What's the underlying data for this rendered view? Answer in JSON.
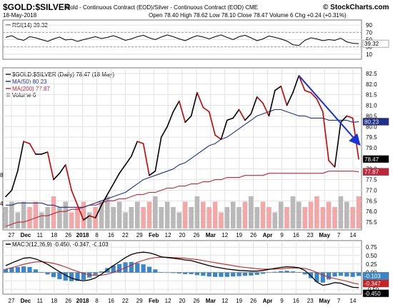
{
  "header": {
    "symbol": "$GOLD:$SILVER",
    "description": "Gold - Continuous Contract (EOD)/Silver - Continuous Contract (EOD) CME",
    "date": "18-May-2018",
    "ohlc": "Open 78.40  High 78.62  Low 78.10  Close 78.47  Volume 6  Chg +0.24 (+0.31%)",
    "brand": "© StockCharts.com"
  },
  "colors": {
    "price": "#000000",
    "down": "#cc0000",
    "ma50": "#1f2f8a",
    "ma200": "#c0253a",
    "trend": "#1b32d6",
    "volume": "#b9b9b9",
    "volume_up": "#f0a8a8",
    "macd": "#000000",
    "signal": "#cc2222",
    "hist": "#3a86c8",
    "rsi": "#000000"
  },
  "chart_data": [
    {
      "type": "line",
      "panel": "RSI",
      "legend": "RSI(14) 39.32",
      "ylim": [
        0,
        100
      ],
      "y_ticks": [
        10,
        30,
        50,
        70,
        90
      ],
      "guide_lines": [
        30,
        70
      ],
      "last_label": "39.32",
      "values": [
        56,
        61,
        52,
        48,
        58,
        55,
        50,
        45,
        52,
        57,
        49,
        51,
        45,
        50,
        54,
        58,
        53,
        56,
        61,
        55,
        48,
        52,
        58,
        62,
        55,
        50,
        57,
        63,
        58,
        52,
        47,
        55,
        61,
        57,
        52,
        58,
        63,
        56,
        50,
        58,
        62,
        55,
        47,
        52,
        60,
        56,
        52,
        46,
        36,
        34,
        48,
        55,
        52,
        47,
        50,
        48,
        54,
        44,
        40,
        39
      ]
    },
    {
      "type": "line",
      "panel": "Price",
      "legend": [
        "$GOLD:$SILVER (Daily) 78.47 (18 May)",
        "MA(50) 80.23",
        "MA(200) 77.87",
        "Volume 6"
      ],
      "ylim": [
        75.2,
        82.7
      ],
      "y_ticks": [
        75.5,
        76.0,
        76.5,
        77.0,
        77.5,
        78.0,
        78.5,
        79.0,
        79.5,
        80.0,
        80.5,
        81.0,
        81.5,
        82.0,
        82.5
      ],
      "right_labels": [
        "78.47",
        "80.23",
        "77.87"
      ],
      "x_labels": [
        "27",
        "Dec",
        "11",
        "18",
        "26",
        "2018",
        "8",
        "16",
        "22",
        "29",
        "Feb",
        "12",
        "20",
        "26",
        "Mar",
        "12",
        "19",
        "26",
        "Apr",
        "9",
        "16",
        "23",
        "May",
        "7",
        "14"
      ],
      "left_edge_labels": [
        "8",
        "4"
      ],
      "series": [
        {
          "name": "$GOLD:$SILVER",
          "values": [
            76.7,
            77.0,
            77.9,
            79.3,
            79.2,
            78.7,
            78.7,
            78.8,
            77.5,
            77.8,
            78.2,
            77.0,
            76.3,
            75.6,
            75.8,
            75.7,
            76.3,
            76.8,
            77.3,
            77.8,
            78.2,
            78.6,
            79.3,
            79.2,
            77.7,
            77.9,
            79.5,
            80.0,
            80.7,
            81.2,
            80.2,
            80.5,
            81.6,
            80.9,
            80.7,
            79.6,
            79.4,
            80.3,
            80.4,
            80.8,
            80.3,
            80.6,
            81.4,
            81.1,
            80.5,
            81.7,
            81.9,
            81.0,
            81.6,
            82.4,
            81.7,
            81.6,
            81.3,
            80.7,
            78.4,
            78.1,
            80.2,
            80.5,
            80.4,
            78.47
          ]
        },
        {
          "name": "MA(50)",
          "values": [
            76.3,
            76.3,
            76.4,
            76.4,
            76.4,
            76.4,
            76.4,
            76.3,
            76.3,
            76.2,
            76.2,
            76.2,
            76.2,
            76.2,
            76.3,
            76.4,
            76.5,
            76.6,
            76.7,
            76.8,
            76.9,
            77.1,
            77.3,
            77.5,
            77.6,
            77.7,
            77.8,
            77.9,
            78.0,
            78.2,
            78.3,
            78.5,
            78.7,
            78.9,
            79.1,
            79.2,
            79.4,
            79.5,
            79.7,
            79.9,
            80.1,
            80.3,
            80.5,
            80.6,
            80.7,
            80.8,
            80.8,
            80.7,
            80.6,
            80.5,
            80.5,
            80.4,
            80.4,
            80.4,
            80.3,
            80.3,
            80.3,
            80.3,
            80.2,
            80.23
          ]
        },
        {
          "name": "MA(200)",
          "values": [
            75.3,
            75.4,
            75.5,
            75.5,
            75.6,
            75.7,
            75.8,
            75.8,
            75.9,
            76.0,
            76.0,
            76.1,
            76.1,
            76.2,
            76.3,
            76.3,
            76.4,
            76.5,
            76.5,
            76.6,
            76.6,
            76.7,
            76.8,
            76.8,
            76.9,
            76.9,
            77.0,
            77.1,
            77.1,
            77.2,
            77.2,
            77.3,
            77.3,
            77.4,
            77.4,
            77.5,
            77.5,
            77.6,
            77.6,
            77.6,
            77.7,
            77.7,
            77.7,
            77.7,
            77.8,
            77.8,
            77.8,
            77.8,
            77.8,
            77.8,
            77.8,
            77.8,
            77.8,
            77.8,
            77.9,
            77.9,
            77.9,
            77.9,
            77.9,
            77.87
          ]
        },
        {
          "name": "Volume",
          "values": [
            4,
            5,
            3,
            5,
            4,
            5,
            3,
            4,
            6,
            4,
            5,
            3,
            4,
            5,
            3,
            4,
            5,
            6,
            4,
            5,
            3,
            4,
            5,
            4,
            5,
            6,
            4,
            5,
            4,
            3,
            5,
            4,
            6,
            5,
            4,
            5,
            3,
            4,
            5,
            4,
            5,
            6,
            4,
            5,
            4,
            3,
            5,
            4,
            6,
            5,
            4,
            5,
            6,
            4,
            5,
            4,
            6,
            5,
            4,
            6
          ]
        }
      ],
      "trendline": {
        "from": [
          49,
          82.4
        ],
        "to": [
          59,
          79.2
        ]
      }
    },
    {
      "type": "line",
      "panel": "MACD",
      "legend": "MACD(12,26,9) -0.450, -0.347, -0.103",
      "ylim": [
        -0.6,
        0.9
      ],
      "y_ticks": [
        -0.5,
        -0.25,
        0.0,
        0.25,
        0.5,
        0.75
      ],
      "right_labels": [
        "-0.103",
        "-0.347",
        "-0.450"
      ],
      "series": [
        {
          "name": "MACD",
          "values": [
            0.2,
            0.28,
            0.35,
            0.42,
            0.44,
            0.4,
            0.33,
            0.24,
            0.13,
            0.02,
            -0.08,
            -0.17,
            -0.22,
            -0.25,
            -0.22,
            -0.16,
            -0.05,
            0.08,
            0.2,
            0.32,
            0.44,
            0.53,
            0.58,
            0.6,
            0.58,
            0.53,
            0.46,
            0.44,
            0.42,
            0.4,
            0.37,
            0.35,
            0.3,
            0.25,
            0.2,
            0.16,
            0.13,
            0.1,
            0.08,
            0.06,
            0.05,
            0.04,
            0.04,
            0.06,
            0.09,
            0.12,
            0.15,
            0.17,
            0.16,
            0.14,
            0.06,
            -0.1,
            -0.28,
            -0.38,
            -0.35,
            -0.3,
            -0.32,
            -0.38,
            -0.44,
            -0.45
          ]
        },
        {
          "name": "Signal",
          "values": [
            0.1,
            0.14,
            0.19,
            0.24,
            0.28,
            0.31,
            0.32,
            0.3,
            0.27,
            0.22,
            0.16,
            0.09,
            0.03,
            -0.03,
            -0.07,
            -0.09,
            -0.08,
            -0.05,
            0.0,
            0.07,
            0.14,
            0.22,
            0.3,
            0.36,
            0.41,
            0.44,
            0.45,
            0.45,
            0.44,
            0.43,
            0.42,
            0.4,
            0.38,
            0.35,
            0.32,
            0.29,
            0.26,
            0.23,
            0.2,
            0.17,
            0.15,
            0.13,
            0.11,
            0.1,
            0.1,
            0.1,
            0.11,
            0.12,
            0.13,
            0.13,
            0.12,
            0.07,
            0.0,
            -0.08,
            -0.14,
            -0.18,
            -0.22,
            -0.26,
            -0.31,
            -0.347
          ]
        }
      ]
    }
  ]
}
